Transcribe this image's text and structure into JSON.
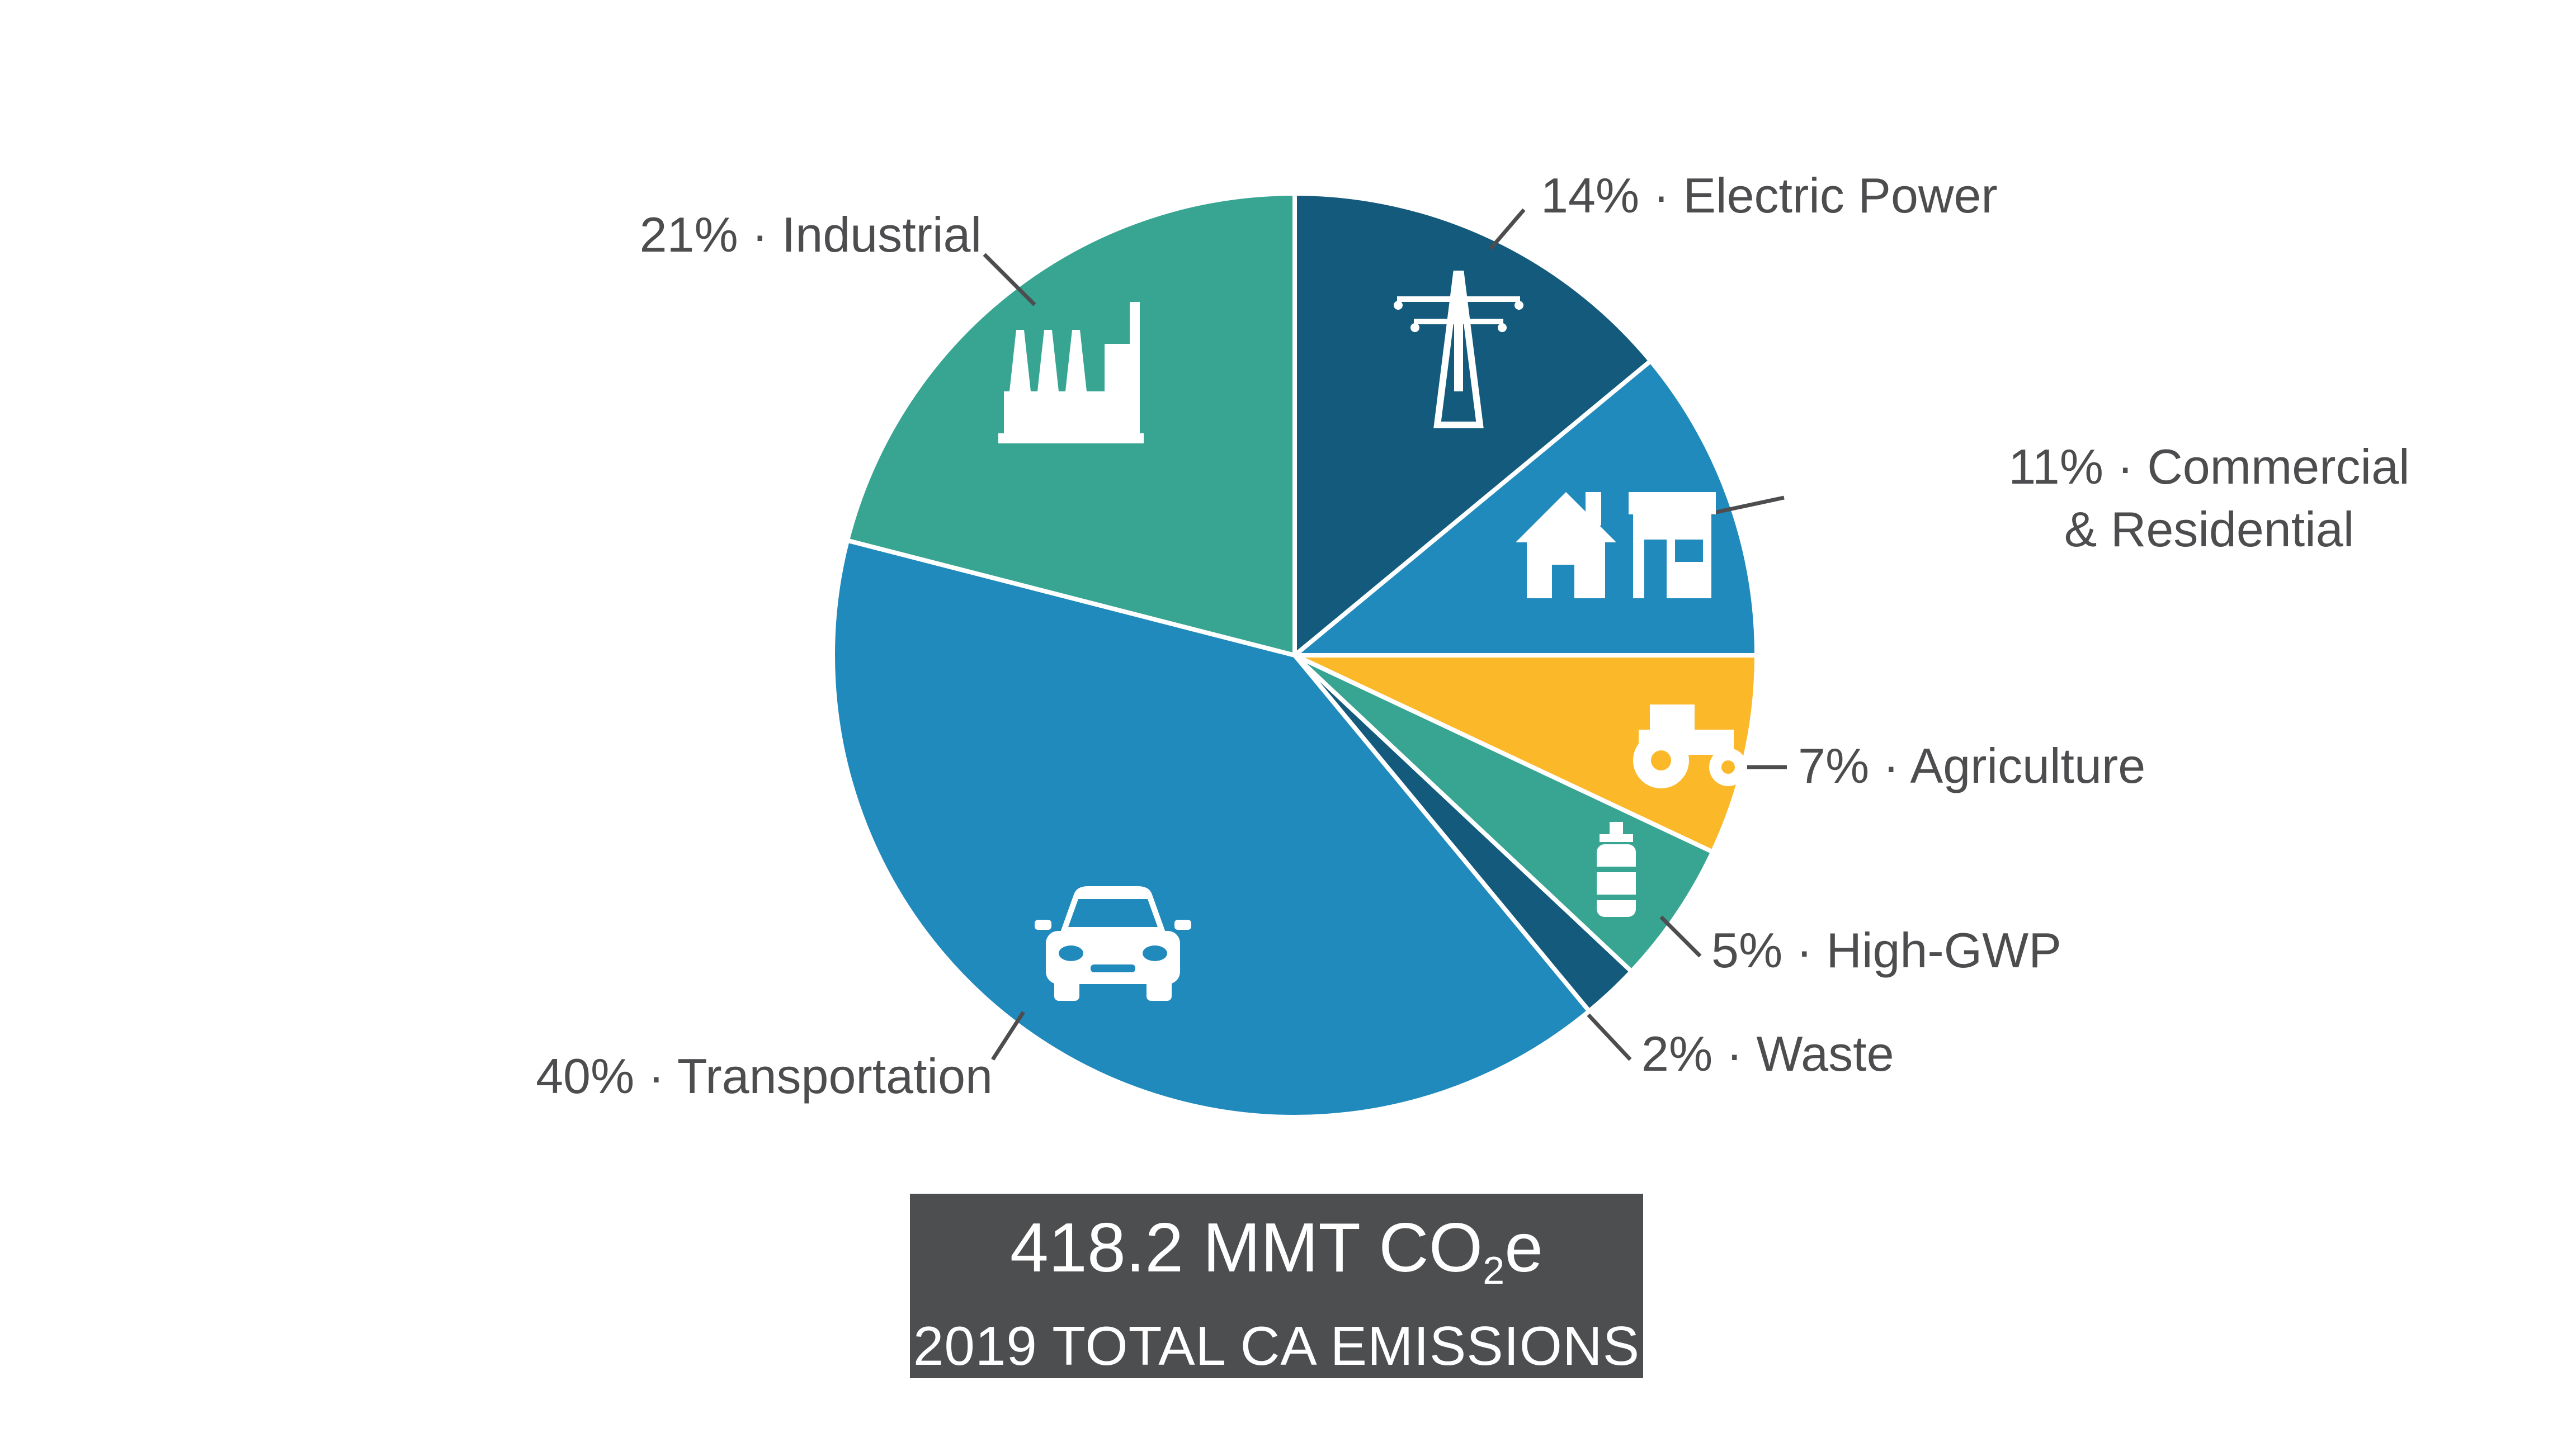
{
  "chart_data": {
    "type": "pie",
    "series": [
      {
        "label": "14% · Electric Power",
        "percent": 14,
        "color": "#135a7c",
        "icon": "power-tower-icon"
      },
      {
        "label": "11% · Commercial",
        "label_line2": "& Residential",
        "percent": 11,
        "color": "#218abd",
        "icon": "house-store-icon"
      },
      {
        "label": "7% · Agriculture",
        "percent": 7,
        "color": "#fbb829",
        "icon": "tractor-icon"
      },
      {
        "label": "5% · High-GWP",
        "percent": 5,
        "color": "#37a591",
        "icon": "gas-cylinder-icon"
      },
      {
        "label": "2% · Waste",
        "percent": 2,
        "color": "#135a7c",
        "icon": ""
      },
      {
        "label": "40% · Transportation",
        "percent": 40,
        "color": "#218abd",
        "icon": "car-icon"
      },
      {
        "label": "21% · Industrial",
        "percent": 21,
        "color": "#37a591",
        "icon": "factory-icon"
      }
    ],
    "start": "12 o'clock",
    "direction": "clockwise",
    "legend": "none"
  },
  "total": {
    "value_text": "418.2 MMT CO",
    "subscript": "2",
    "suffix": "e",
    "caption": "2019 TOTAL CA EMISSIONS"
  }
}
